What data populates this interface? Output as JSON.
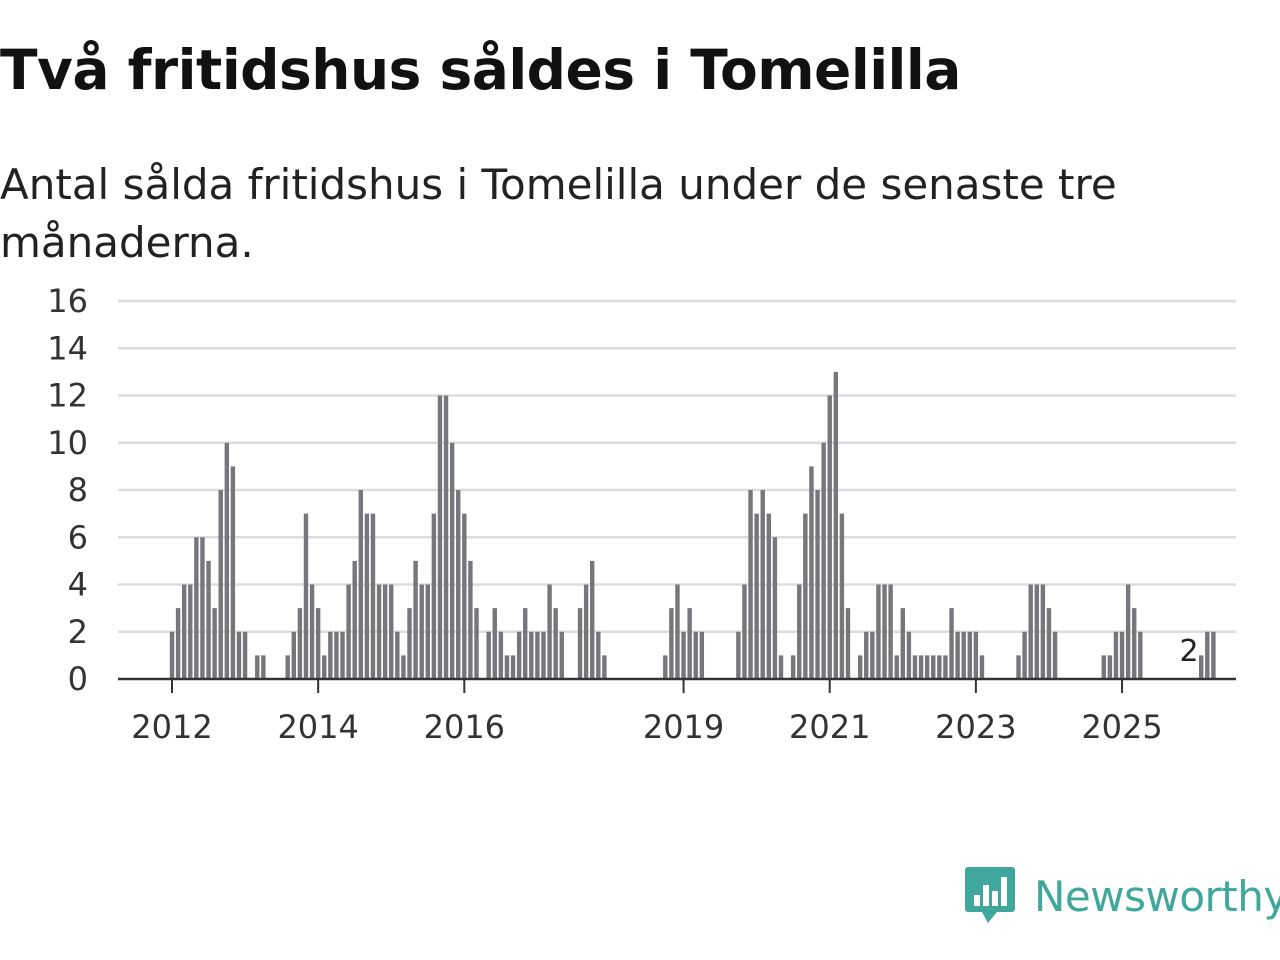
{
  "header": {
    "title": "Två fritidshus såldes i Tomelilla",
    "subtitle": "Antal sålda fritidshus i Tomelilla under de senaste tre månaderna."
  },
  "brand": {
    "name": "Newsworthy",
    "color": "#3fa79b",
    "icon": "newsworthy-logo-icon"
  },
  "colors": {
    "bar": "#77767b",
    "highlight": "#17a398",
    "grid": "#dddddd",
    "axis": "#333333"
  },
  "chart_data": {
    "type": "bar",
    "title": "Två fritidshus såldes i Tomelilla",
    "subtitle": "Antal sålda fritidshus i Tomelilla under de senaste tre månaderna.",
    "xlabel": "",
    "ylabel": "",
    "ylim": [
      0,
      16
    ],
    "y_ticks": [
      "0",
      "2",
      "4",
      "6",
      "8",
      "10",
      "12",
      "14",
      "16"
    ],
    "x_tick_labels": [
      {
        "label": "2012",
        "index": 0
      },
      {
        "label": "2014",
        "index": 24
      },
      {
        "label": "2016",
        "index": 48
      },
      {
        "label": "2019",
        "index": 84
      },
      {
        "label": "2021",
        "index": 108
      },
      {
        "label": "2023",
        "index": 132
      },
      {
        "label": "2025",
        "index": 156
      }
    ],
    "start": "2012-01",
    "frequency": "monthly",
    "grid": true,
    "values": [
      2,
      3,
      4,
      4,
      6,
      6,
      5,
      3,
      8,
      10,
      9,
      2,
      2,
      0,
      1,
      1,
      0,
      0,
      0,
      1,
      2,
      3,
      7,
      4,
      3,
      1,
      2,
      2,
      2,
      4,
      5,
      8,
      7,
      7,
      4,
      4,
      4,
      2,
      1,
      3,
      5,
      4,
      4,
      7,
      12,
      12,
      10,
      8,
      7,
      5,
      3,
      0,
      2,
      3,
      2,
      1,
      1,
      2,
      3,
      2,
      2,
      2,
      4,
      3,
      2,
      0,
      0,
      3,
      4,
      5,
      2,
      1,
      0,
      0,
      0,
      0,
      0,
      0,
      0,
      0,
      0,
      1,
      3,
      4,
      2,
      3,
      2,
      2,
      0,
      0,
      0,
      0,
      0,
      2,
      4,
      8,
      7,
      8,
      7,
      6,
      1,
      0,
      1,
      4,
      7,
      9,
      8,
      10,
      12,
      13,
      7,
      3,
      0,
      1,
      2,
      2,
      4,
      4,
      4,
      1,
      3,
      2,
      1,
      1,
      1,
      1,
      1,
      1,
      3,
      2,
      2,
      2,
      2,
      1,
      0,
      0,
      0,
      0,
      0,
      1,
      2,
      4,
      4,
      4,
      3,
      2,
      0,
      0,
      0,
      0,
      0,
      0,
      0,
      1,
      1,
      2,
      2,
      4,
      3,
      2,
      0,
      0,
      0,
      0,
      0,
      0,
      0,
      0,
      0,
      1,
      2,
      2
    ],
    "highlight_index": 167,
    "highlight_label": "2"
  }
}
